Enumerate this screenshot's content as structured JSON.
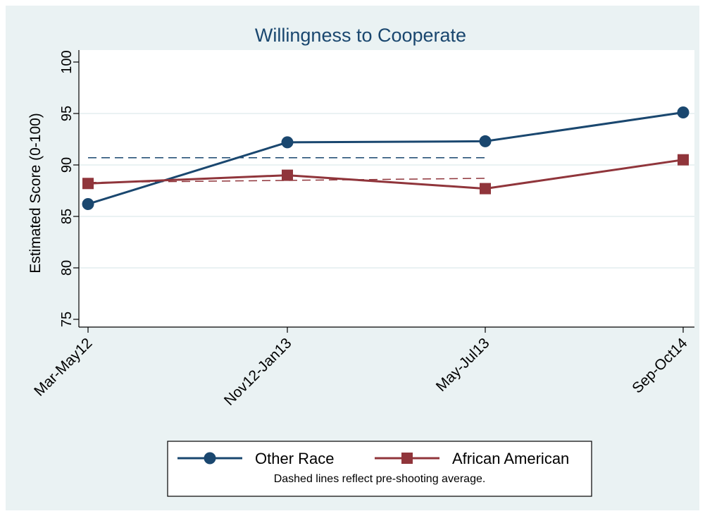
{
  "chart_data": {
    "type": "line",
    "title": "Willingness to Cooperate",
    "xlabel": "",
    "ylabel": "Estimated Score (0-100)",
    "categories": [
      "Mar-May12",
      "Nov12-Jan13",
      "May-Jul13",
      "Sep-Oct14"
    ],
    "ylim": [
      75,
      100
    ],
    "yticks": [
      "75",
      "80",
      "85",
      "90",
      "95",
      "100"
    ],
    "grid": true,
    "legend_position": "bottom",
    "series": [
      {
        "name": "Other Race",
        "values": [
          86.2,
          92.2,
          92.3,
          95.1
        ],
        "color": "#1a476f",
        "marker": "circle"
      },
      {
        "name": "African American",
        "values": [
          88.2,
          89.0,
          87.7,
          90.5
        ],
        "color": "#90353b",
        "marker": "square"
      }
    ],
    "reference_lines": [
      {
        "series": "Other Race",
        "value": 90.7,
        "from": "Mar-May12",
        "to": "May-Jul13",
        "style": "dashed",
        "color": "#1a476f"
      },
      {
        "series": "African American",
        "from": "Mar-May12",
        "to": "May-Jul13",
        "start_value": 88.3,
        "end_value": 88.7,
        "style": "dashed",
        "color": "#90353b"
      }
    ],
    "note": "Dashed lines reflect pre-shooting average."
  },
  "colors": {
    "outer_background": "#eaf2f3",
    "plot_background": "#ffffff",
    "grid": "#eaf2f3",
    "title": "#1a476f",
    "text": "#000000"
  }
}
